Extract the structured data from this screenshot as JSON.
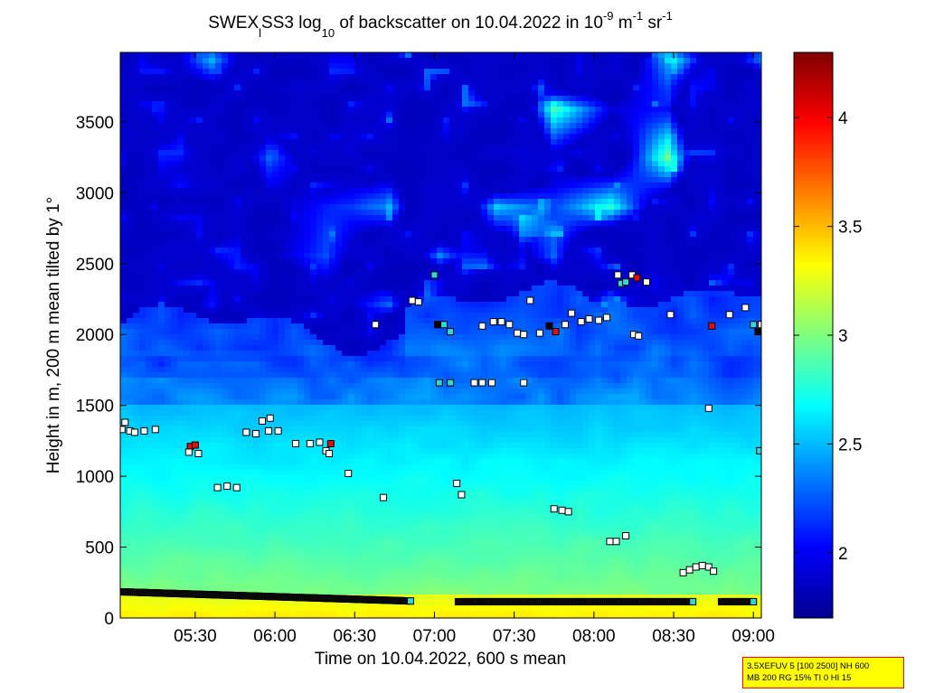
{
  "chart_data": {
    "type": "heatmap",
    "title_parts": {
      "prefix": "SWEX",
      "prefix_sub": "l",
      "instrument": "SS3 log",
      "log_sub": "10",
      "middle": " of backscatter on 10.04.2022 in 10",
      "exp1": "-9",
      "unit1": " m",
      "exp2": "-1",
      "unit2": " sr",
      "exp3": "-1"
    },
    "xlabel": "Time on 10.04.2022, 600 s mean",
    "ylabel": "Height in m, 200 m mean tilted by 1°",
    "x_ticks": [
      "05:30",
      "06:00",
      "06:30",
      "07:00",
      "07:30",
      "08:00",
      "08:30",
      "09:00"
    ],
    "x_tick_hours": [
      5.5,
      6.0,
      6.5,
      7.0,
      7.5,
      8.0,
      8.5,
      9.0
    ],
    "xlim_hours": [
      5.03,
      9.05
    ],
    "y_ticks": [
      "0",
      "500",
      "1000",
      "1500",
      "2000",
      "2500",
      "3000",
      "3500"
    ],
    "y_tick_values": [
      0,
      500,
      1000,
      1500,
      2000,
      2500,
      3000,
      3500
    ],
    "ylim": [
      0,
      3990
    ],
    "colorbar": {
      "range": [
        1.7,
        4.3
      ],
      "ticks": [
        "2",
        "2.5",
        "3",
        "3.5",
        "4"
      ],
      "tick_values": [
        2,
        2.5,
        3,
        3.5,
        4
      ],
      "colormap": "jet"
    },
    "colors": {
      "low": "#00008f",
      "mid": "#00ffff",
      "high": "#800000"
    },
    "info_box": {
      "line1": "3.5XEFUV 5 [100 2500] NH 600",
      "line2": "MB 200 RG 15% TI 0 HI 15"
    },
    "markers": [
      {
        "t": 5.04,
        "h": 1330,
        "c": "w"
      },
      {
        "t": 5.06,
        "h": 1380,
        "c": "w"
      },
      {
        "t": 5.09,
        "h": 1320,
        "c": "w"
      },
      {
        "t": 5.12,
        "h": 1310,
        "c": "w"
      },
      {
        "t": 5.18,
        "h": 1320,
        "c": "w"
      },
      {
        "t": 5.25,
        "h": 1330,
        "c": "w"
      },
      {
        "t": 5.47,
        "h": 1210,
        "c": "r"
      },
      {
        "t": 5.5,
        "h": 1220,
        "c": "r"
      },
      {
        "t": 5.46,
        "h": 1170,
        "c": "w"
      },
      {
        "t": 5.52,
        "h": 1160,
        "c": "w"
      },
      {
        "t": 5.64,
        "h": 920,
        "c": "w"
      },
      {
        "t": 5.7,
        "h": 930,
        "c": "w"
      },
      {
        "t": 5.76,
        "h": 920,
        "c": "w"
      },
      {
        "t": 5.82,
        "h": 1310,
        "c": "w"
      },
      {
        "t": 5.88,
        "h": 1300,
        "c": "w"
      },
      {
        "t": 5.92,
        "h": 1390,
        "c": "w"
      },
      {
        "t": 5.97,
        "h": 1410,
        "c": "w"
      },
      {
        "t": 5.96,
        "h": 1320,
        "c": "w"
      },
      {
        "t": 6.02,
        "h": 1320,
        "c": "w"
      },
      {
        "t": 6.13,
        "h": 1230,
        "c": "w"
      },
      {
        "t": 6.22,
        "h": 1230,
        "c": "w"
      },
      {
        "t": 6.28,
        "h": 1240,
        "c": "w"
      },
      {
        "t": 6.32,
        "h": 1180,
        "c": "w"
      },
      {
        "t": 6.35,
        "h": 1230,
        "c": "r"
      },
      {
        "t": 6.34,
        "h": 1160,
        "c": "w"
      },
      {
        "t": 6.46,
        "h": 1020,
        "c": "w"
      },
      {
        "t": 6.63,
        "h": 2070,
        "c": "w"
      },
      {
        "t": 6.68,
        "h": 850,
        "c": "w"
      },
      {
        "t": 6.86,
        "h": 2240,
        "c": "w"
      },
      {
        "t": 6.9,
        "h": 2230,
        "c": "w"
      },
      {
        "t": 7.0,
        "h": 2420,
        "c": "c"
      },
      {
        "t": 7.02,
        "h": 2070,
        "c": "k"
      },
      {
        "t": 7.06,
        "h": 2070,
        "c": "c"
      },
      {
        "t": 7.1,
        "h": 2020,
        "c": "c"
      },
      {
        "t": 7.03,
        "h": 1660,
        "c": "c"
      },
      {
        "t": 7.1,
        "h": 1660,
        "c": "c"
      },
      {
        "t": 7.14,
        "h": 950,
        "c": "w"
      },
      {
        "t": 7.17,
        "h": 870,
        "c": "w"
      },
      {
        "t": 7.25,
        "h": 1660,
        "c": "w"
      },
      {
        "t": 7.3,
        "h": 1660,
        "c": "w"
      },
      {
        "t": 7.36,
        "h": 1660,
        "c": "w"
      },
      {
        "t": 7.3,
        "h": 2060,
        "c": "w"
      },
      {
        "t": 7.37,
        "h": 2090,
        "c": "w"
      },
      {
        "t": 7.42,
        "h": 2090,
        "c": "w"
      },
      {
        "t": 7.47,
        "h": 2070,
        "c": "w"
      },
      {
        "t": 7.52,
        "h": 2010,
        "c": "w"
      },
      {
        "t": 7.6,
        "h": 2240,
        "c": "w"
      },
      {
        "t": 7.56,
        "h": 1660,
        "c": "w"
      },
      {
        "t": 7.56,
        "h": 2000,
        "c": "w"
      },
      {
        "t": 7.66,
        "h": 2010,
        "c": "w"
      },
      {
        "t": 7.72,
        "h": 2060,
        "c": "k"
      },
      {
        "t": 7.76,
        "h": 2020,
        "c": "r"
      },
      {
        "t": 7.82,
        "h": 2070,
        "c": "w"
      },
      {
        "t": 7.86,
        "h": 2150,
        "c": "w"
      },
      {
        "t": 7.75,
        "h": 770,
        "c": "w"
      },
      {
        "t": 7.8,
        "h": 760,
        "c": "w"
      },
      {
        "t": 7.84,
        "h": 750,
        "c": "w"
      },
      {
        "t": 7.92,
        "h": 2090,
        "c": "w"
      },
      {
        "t": 7.97,
        "h": 2110,
        "c": "w"
      },
      {
        "t": 8.03,
        "h": 2100,
        "c": "w"
      },
      {
        "t": 8.08,
        "h": 2120,
        "c": "w"
      },
      {
        "t": 8.1,
        "h": 540,
        "c": "w"
      },
      {
        "t": 8.14,
        "h": 540,
        "c": "w"
      },
      {
        "t": 8.2,
        "h": 580,
        "c": "w"
      },
      {
        "t": 8.15,
        "h": 2420,
        "c": "w"
      },
      {
        "t": 8.17,
        "h": 2360,
        "c": "c"
      },
      {
        "t": 8.2,
        "h": 2370,
        "c": "c"
      },
      {
        "t": 8.24,
        "h": 2420,
        "c": "w"
      },
      {
        "t": 8.27,
        "h": 2400,
        "c": "r"
      },
      {
        "t": 8.33,
        "h": 2370,
        "c": "w"
      },
      {
        "t": 8.25,
        "h": 2000,
        "c": "w"
      },
      {
        "t": 8.28,
        "h": 1990,
        "c": "w"
      },
      {
        "t": 8.48,
        "h": 2140,
        "c": "w"
      },
      {
        "t": 8.56,
        "h": 320,
        "c": "w"
      },
      {
        "t": 8.6,
        "h": 340,
        "c": "w"
      },
      {
        "t": 8.64,
        "h": 360,
        "c": "w"
      },
      {
        "t": 8.68,
        "h": 370,
        "c": "w"
      },
      {
        "t": 8.72,
        "h": 360,
        "c": "w"
      },
      {
        "t": 8.75,
        "h": 330,
        "c": "w"
      },
      {
        "t": 8.72,
        "h": 1480,
        "c": "w"
      },
      {
        "t": 8.74,
        "h": 2060,
        "c": "r"
      },
      {
        "t": 8.85,
        "h": 2140,
        "c": "w"
      },
      {
        "t": 8.95,
        "h": 2190,
        "c": "w"
      },
      {
        "t": 9.0,
        "h": 2070,
        "c": "c"
      },
      {
        "t": 9.03,
        "h": 2020,
        "c": "k"
      },
      {
        "t": 9.05,
        "h": 2070,
        "c": "w"
      },
      {
        "t": 9.04,
        "h": 1180,
        "c": "c"
      }
    ],
    "ground_marker_runs": [
      {
        "t0": 5.03,
        "t1": 6.85,
        "h0": 185,
        "h1": 120
      },
      {
        "t0": 7.15,
        "t1": 8.62,
        "h0": 115,
        "h1": 115
      },
      {
        "t0": 8.8,
        "t1": 9.0,
        "h0": 115,
        "h1": 115
      }
    ]
  }
}
